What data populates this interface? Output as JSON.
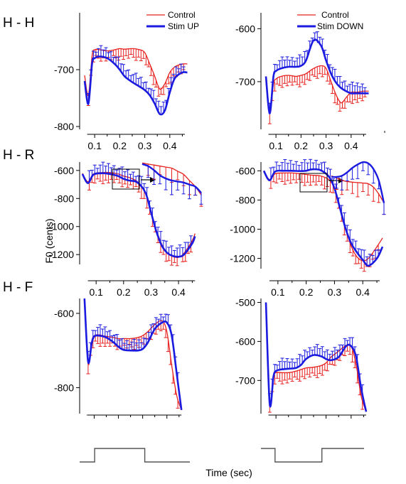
{
  "figure": {
    "row_labels": [
      "H - H",
      "H - R",
      "H - F"
    ],
    "ylabel": "F0 (cents)",
    "xlabel": "Time (sec)",
    "colors": {
      "control": "#e8201e",
      "stim": "#1a1ae0",
      "axis": "#000000",
      "schematic": "#555555"
    },
    "legend_left": {
      "control": "Control",
      "stim": "Stim UP"
    },
    "legend_right": {
      "control": "Control",
      "stim": "Stim DOWN"
    },
    "x_tick_labels": [
      "0.1",
      "0.2",
      "0.3",
      "0.4"
    ]
  },
  "chart_data": [
    {
      "type": "line",
      "row": "H - H",
      "x_range": [
        0.04,
        0.48
      ],
      "ylim": [
        -805,
        -600
      ],
      "yticks": [
        -700,
        -800
      ],
      "xticks": [
        0.1,
        0.2,
        0.3,
        0.4
      ],
      "legend": [
        "Control",
        "Stim UP"
      ],
      "series": [
        {
          "name": "Control",
          "color": "#e8201e",
          "x": [
            0.06,
            0.075,
            0.09,
            0.1,
            0.12,
            0.15,
            0.18,
            0.2,
            0.22,
            0.25,
            0.28,
            0.3,
            0.32,
            0.34,
            0.36,
            0.38,
            0.4,
            0.42,
            0.45,
            0.47
          ],
          "y": [
            -710,
            -745,
            -675,
            -665,
            -665,
            -667,
            -665,
            -663,
            -664,
            -663,
            -665,
            -670,
            -690,
            -712,
            -734,
            -725,
            -705,
            -695,
            -690,
            -690
          ]
        },
        {
          "name": "Stim UP",
          "color": "#1a1ae0",
          "x": [
            0.06,
            0.075,
            0.09,
            0.1,
            0.12,
            0.15,
            0.18,
            0.2,
            0.22,
            0.25,
            0.28,
            0.3,
            0.32,
            0.34,
            0.36,
            0.38,
            0.4,
            0.42,
            0.45,
            0.47
          ],
          "y": [
            -720,
            -760,
            -688,
            -680,
            -677,
            -680,
            -690,
            -700,
            -712,
            -722,
            -730,
            -736,
            -745,
            -760,
            -778,
            -772,
            -740,
            -715,
            -705,
            -705
          ]
        }
      ]
    },
    {
      "type": "line",
      "row": "H - H",
      "x_range": [
        0.04,
        0.48
      ],
      "ylim": [
        -790,
        -570
      ],
      "yticks": [
        -600,
        -700
      ],
      "xticks": [
        0.1,
        0.2,
        0.3,
        0.4
      ],
      "legend": [
        "Control",
        "Stim DOWN"
      ],
      "series": [
        {
          "name": "Control",
          "color": "#e8201e",
          "x": [
            0.06,
            0.075,
            0.09,
            0.1,
            0.12,
            0.15,
            0.18,
            0.2,
            0.22,
            0.25,
            0.28,
            0.3,
            0.32,
            0.34,
            0.36,
            0.38,
            0.4,
            0.42,
            0.45,
            0.47
          ],
          "y": [
            -700,
            -760,
            -705,
            -695,
            -690,
            -688,
            -690,
            -688,
            -685,
            -675,
            -670,
            -675,
            -700,
            -725,
            -740,
            -730,
            -720,
            -720,
            -718,
            -718
          ]
        },
        {
          "name": "Stim DOWN",
          "color": "#1a1ae0",
          "x": [
            0.06,
            0.075,
            0.09,
            0.1,
            0.12,
            0.15,
            0.18,
            0.2,
            0.22,
            0.25,
            0.28,
            0.3,
            0.32,
            0.34,
            0.36,
            0.38,
            0.4,
            0.42,
            0.45,
            0.47
          ],
          "y": [
            -690,
            -760,
            -690,
            -680,
            -675,
            -672,
            -672,
            -670,
            -660,
            -622,
            -632,
            -660,
            -685,
            -702,
            -712,
            -718,
            -722,
            -722,
            -722,
            -722
          ]
        }
      ]
    },
    {
      "type": "line",
      "row": "H - R",
      "x_range": [
        0.04,
        0.48
      ],
      "ylim": [
        -1270,
        -540
      ],
      "yticks": [
        -600,
        -800,
        -1000,
        -1200
      ],
      "xticks": [
        0.1,
        0.2,
        0.3,
        0.4
      ],
      "series": [
        {
          "name": "Control",
          "color": "#e8201e",
          "x": [
            0.05,
            0.07,
            0.09,
            0.12,
            0.15,
            0.18,
            0.2,
            0.22,
            0.25,
            0.28,
            0.3,
            0.32,
            0.34,
            0.36,
            0.38,
            0.4,
            0.42,
            0.45,
            0.46
          ],
          "y": [
            -620,
            -680,
            -625,
            -615,
            -615,
            -625,
            -640,
            -650,
            -680,
            -760,
            -900,
            -1030,
            -1130,
            -1190,
            -1215,
            -1220,
            -1190,
            -1100,
            -1050
          ]
        },
        {
          "name": "Stim UP",
          "color": "#1a1ae0",
          "x": [
            0.05,
            0.07,
            0.09,
            0.12,
            0.15,
            0.18,
            0.2,
            0.22,
            0.25,
            0.28,
            0.3,
            0.32,
            0.34,
            0.36,
            0.38,
            0.4,
            0.42,
            0.45,
            0.46
          ],
          "y": [
            -625,
            -690,
            -630,
            -620,
            -625,
            -640,
            -660,
            -672,
            -685,
            -760,
            -900,
            -1040,
            -1140,
            -1190,
            -1210,
            -1215,
            -1200,
            -1120,
            -1070
          ]
        }
      ]
    },
    {
      "type": "line",
      "row": "H - R",
      "x_range": [
        0.04,
        0.48
      ],
      "ylim": [
        -1270,
        -540
      ],
      "yticks": [
        -600,
        -800,
        -1000,
        -1200
      ],
      "xticks": [
        0.1,
        0.2,
        0.3,
        0.4
      ],
      "series": [
        {
          "name": "Control",
          "color": "#e8201e",
          "x": [
            0.05,
            0.07,
            0.09,
            0.12,
            0.15,
            0.18,
            0.2,
            0.22,
            0.25,
            0.28,
            0.3,
            0.32,
            0.34,
            0.36,
            0.38,
            0.4,
            0.42,
            0.45,
            0.47
          ],
          "y": [
            -600,
            -660,
            -620,
            -615,
            -615,
            -620,
            -625,
            -630,
            -635,
            -660,
            -720,
            -850,
            -1000,
            -1120,
            -1190,
            -1215,
            -1200,
            -1120,
            -1060
          ]
        },
        {
          "name": "Stim DOWN",
          "color": "#1a1ae0",
          "x": [
            0.05,
            0.07,
            0.09,
            0.12,
            0.15,
            0.18,
            0.2,
            0.22,
            0.25,
            0.28,
            0.3,
            0.32,
            0.34,
            0.36,
            0.38,
            0.4,
            0.42,
            0.45,
            0.47
          ],
          "y": [
            -600,
            -665,
            -605,
            -600,
            -600,
            -602,
            -600,
            -590,
            -595,
            -640,
            -720,
            -860,
            -1000,
            -1100,
            -1160,
            -1210,
            -1250,
            -1200,
            -1120
          ]
        }
      ]
    },
    {
      "type": "line",
      "row": "H - F",
      "x_range": [
        0.04,
        0.48
      ],
      "ylim": [
        -870,
        -560
      ],
      "yticks": [
        -600,
        -800
      ],
      "xticks": [
        0.1,
        0.2,
        0.3,
        0.4
      ],
      "series": [
        {
          "name": "Control",
          "color": "#e8201e",
          "x": [
            0.06,
            0.075,
            0.09,
            0.1,
            0.12,
            0.15,
            0.18,
            0.2,
            0.22,
            0.25,
            0.28,
            0.3,
            0.32,
            0.35,
            0.38,
            0.4,
            0.42,
            0.44,
            0.46
          ],
          "y": [
            -560,
            -735,
            -675,
            -660,
            -658,
            -662,
            -665,
            -668,
            -668,
            -668,
            -665,
            -660,
            -650,
            -630,
            -620,
            -650,
            -740,
            -820,
            -860
          ]
        },
        {
          "name": "Stim UP",
          "color": "#1a1ae0",
          "x": [
            0.06,
            0.075,
            0.09,
            0.1,
            0.12,
            0.15,
            0.18,
            0.2,
            0.22,
            0.25,
            0.28,
            0.3,
            0.32,
            0.35,
            0.38,
            0.4,
            0.42,
            0.44,
            0.46
          ],
          "y": [
            -560,
            -730,
            -680,
            -662,
            -660,
            -665,
            -678,
            -690,
            -698,
            -700,
            -700,
            -696,
            -680,
            -642,
            -625,
            -625,
            -660,
            -760,
            -860
          ]
        }
      ]
    },
    {
      "type": "line",
      "row": "H - F",
      "x_range": [
        0.04,
        0.48
      ],
      "ylim": [
        -785,
        -490
      ],
      "yticks": [
        -500,
        -600,
        -700
      ],
      "xticks": [
        0.1,
        0.2,
        0.3,
        0.4
      ],
      "series": [
        {
          "name": "Control",
          "color": "#e8201e",
          "x": [
            0.06,
            0.075,
            0.09,
            0.1,
            0.12,
            0.15,
            0.18,
            0.2,
            0.22,
            0.25,
            0.28,
            0.3,
            0.32,
            0.35,
            0.38,
            0.4,
            0.42,
            0.44,
            0.46
          ],
          "y": [
            -500,
            -755,
            -690,
            -680,
            -680,
            -680,
            -676,
            -672,
            -668,
            -666,
            -662,
            -655,
            -640,
            -625,
            -610,
            -612,
            -660,
            -740,
            -780
          ]
        },
        {
          "name": "Stim DOWN",
          "color": "#1a1ae0",
          "x": [
            0.06,
            0.075,
            0.09,
            0.1,
            0.12,
            0.15,
            0.18,
            0.2,
            0.22,
            0.25,
            0.28,
            0.3,
            0.32,
            0.35,
            0.38,
            0.4,
            0.42,
            0.44,
            0.46
          ],
          "y": [
            -500,
            -760,
            -690,
            -676,
            -672,
            -670,
            -668,
            -660,
            -645,
            -635,
            -638,
            -645,
            -648,
            -640,
            -612,
            -612,
            -640,
            -720,
            -780
          ]
        }
      ]
    }
  ],
  "insets": [
    {
      "panel_index": 2,
      "x_range": [
        0.2,
        0.3
      ],
      "series": [
        {
          "name": "Control",
          "values": [
            -585,
            -590,
            -595,
            -600,
            -605,
            -610,
            -625,
            -640,
            -670,
            -700,
            -740
          ]
        },
        {
          "name": "Stim UP",
          "values": [
            -590,
            -600,
            -620,
            -645,
            -660,
            -670,
            -675,
            -680,
            -690,
            -700,
            -730
          ]
        }
      ]
    },
    {
      "panel_index": 3,
      "x_range": [
        0.2,
        0.3
      ],
      "series": [
        {
          "name": "Control",
          "values": [
            -640,
            -650,
            -660,
            -665,
            -668,
            -670,
            -672,
            -675,
            -690,
            -720,
            -760
          ]
        },
        {
          "name": "Stim DOWN",
          "values": [
            -645,
            -645,
            -640,
            -625,
            -605,
            -590,
            -580,
            -585,
            -610,
            -660,
            -760
          ]
        }
      ]
    }
  ],
  "stimulus_schematic": [
    {
      "name": "Stim UP",
      "segments": [
        {
          "x0": 0.04,
          "x1": 0.1,
          "level": 0
        },
        {
          "x0": 0.1,
          "x1": 0.3,
          "level": 1
        },
        {
          "x0": 0.3,
          "x1": 0.48,
          "level": 0
        }
      ]
    },
    {
      "name": "Stim DOWN",
      "segments": [
        {
          "x0": 0.04,
          "x1": 0.1,
          "level": 1
        },
        {
          "x0": 0.1,
          "x1": 0.3,
          "level": 0
        },
        {
          "x0": 0.3,
          "x1": 0.48,
          "level": 1
        }
      ]
    }
  ]
}
